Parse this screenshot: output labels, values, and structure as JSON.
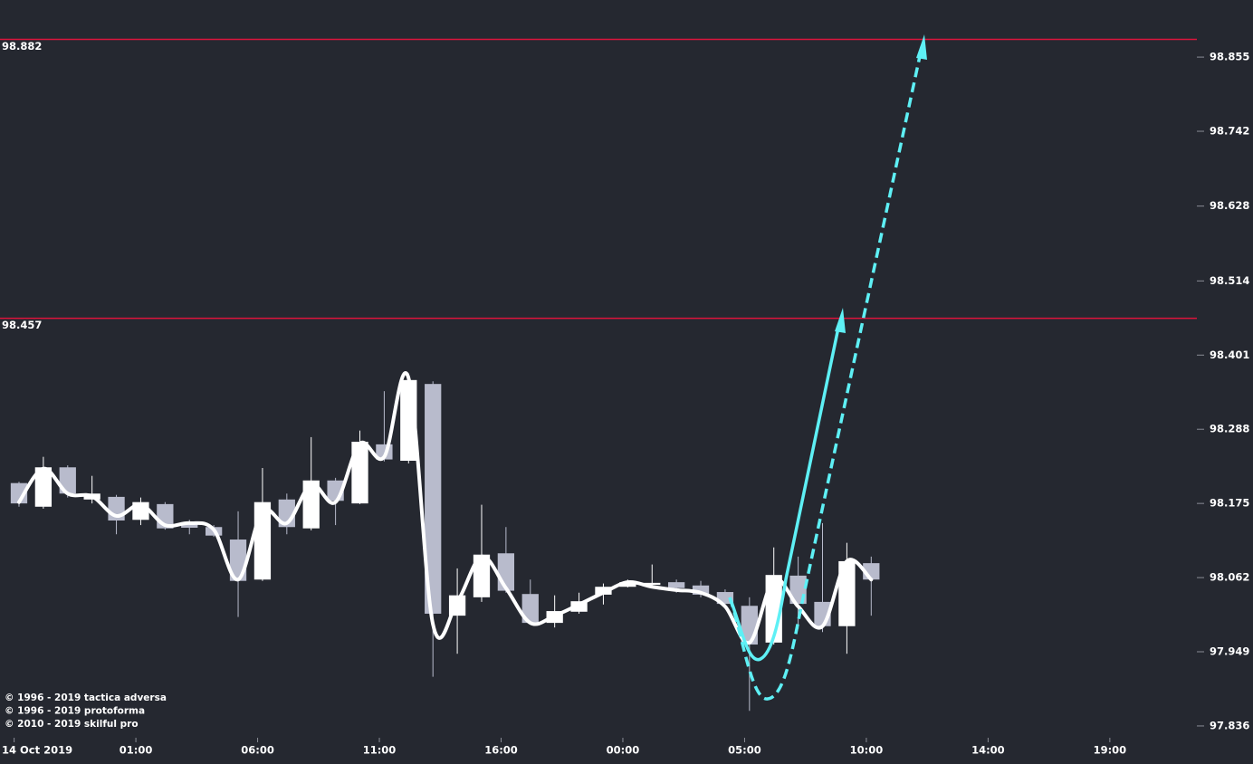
{
  "chart_data": {
    "type": "candlestick",
    "x": [
      0,
      1,
      2,
      3,
      4,
      5,
      6,
      7,
      8,
      9,
      10,
      11,
      12,
      13,
      14,
      15,
      16,
      17,
      18,
      19,
      20,
      21,
      22,
      23,
      24,
      25,
      26,
      27,
      28,
      29,
      30,
      31,
      32,
      33,
      34,
      35
    ],
    "open": [
      98.206,
      98.17,
      98.23,
      98.181,
      98.185,
      98.15,
      98.174,
      98.145,
      98.139,
      98.12,
      98.059,
      98.181,
      98.137,
      98.21,
      98.175,
      98.265,
      98.24,
      98.357,
      98.004,
      98.032,
      98.099,
      98.037,
      97.993,
      98.01,
      98.036,
      98.048,
      98.051,
      98.055,
      98.05,
      98.04,
      98.019,
      97.963,
      98.065,
      98.025,
      97.988,
      98.084
    ],
    "high": [
      98.208,
      98.246,
      98.233,
      98.217,
      98.188,
      98.184,
      98.177,
      98.15,
      98.142,
      98.163,
      98.229,
      98.19,
      98.276,
      98.214,
      98.286,
      98.346,
      98.373,
      98.361,
      98.076,
      98.173,
      98.139,
      98.059,
      98.035,
      98.039,
      98.053,
      98.059,
      98.082,
      98.059,
      98.057,
      98.044,
      98.032,
      98.108,
      98.094,
      98.145,
      98.115,
      98.094
    ],
    "low": [
      98.17,
      98.167,
      98.184,
      98.175,
      98.128,
      98.142,
      98.135,
      98.128,
      98.124,
      98.002,
      98.057,
      98.128,
      98.134,
      98.142,
      98.174,
      98.239,
      98.236,
      97.911,
      97.946,
      98.025,
      98.039,
      97.991,
      97.986,
      98.007,
      98.021,
      98.047,
      98.048,
      98.039,
      98.032,
      98.018,
      97.859,
      97.96,
      97.984,
      97.979,
      97.946,
      98.004
    ],
    "close": [
      98.175,
      98.23,
      98.19,
      98.19,
      98.149,
      98.177,
      98.137,
      98.138,
      98.126,
      98.057,
      98.177,
      98.139,
      98.21,
      98.179,
      98.269,
      98.242,
      98.363,
      98.007,
      98.035,
      98.097,
      98.042,
      97.993,
      98.011,
      98.026,
      98.048,
      98.055,
      98.054,
      98.046,
      98.036,
      98.022,
      97.96,
      98.066,
      98.022,
      97.988,
      98.087,
      98.059
    ],
    "up_color": "#ffffff",
    "down_color": "#b8bbcc",
    "line": {
      "color": "#ffffff",
      "values": [
        98.177,
        98.228,
        98.19,
        98.186,
        98.156,
        98.173,
        98.142,
        98.145,
        98.135,
        98.059,
        98.163,
        98.145,
        98.204,
        98.177,
        98.266,
        98.246,
        98.366,
        97.991,
        98.025,
        98.094,
        98.046,
        97.993,
        98.004,
        98.021,
        98.039,
        98.055,
        98.048,
        98.043,
        98.039,
        98.018,
        97.963,
        98.059,
        98.018,
        97.988,
        98.087,
        98.059
      ]
    },
    "hlines": [
      98.882,
      98.457
    ],
    "hline_color": "#dc143c",
    "xlim": [
      -0.78,
      48.3
    ],
    "ylim": [
      97.818,
      98.942
    ],
    "yticks": [
      98.855,
      98.742,
      98.628,
      98.514,
      98.401,
      98.288,
      98.175,
      98.062,
      97.949,
      97.836
    ],
    "xticks": [
      {
        "value": -0.2,
        "label": "14 Oct 2019"
      },
      {
        "value": 4.8,
        "label": "01:00"
      },
      {
        "value": 9.8,
        "label": "06:00"
      },
      {
        "value": 14.8,
        "label": "11:00"
      },
      {
        "value": 19.8,
        "label": "16:00"
      },
      {
        "value": 24.8,
        "label": "00:00"
      },
      {
        "value": 29.8,
        "label": "05:00"
      },
      {
        "value": 34.8,
        "label": "10:00"
      },
      {
        "value": 39.8,
        "label": "14:00"
      },
      {
        "value": 44.8,
        "label": "19:00"
      }
    ],
    "notes": [
      "© 1996 - 2019 tactica adversa",
      "© 1996 - 2019 protoforma",
      "© 2010 - 2019 skilful pro"
    ]
  }
}
